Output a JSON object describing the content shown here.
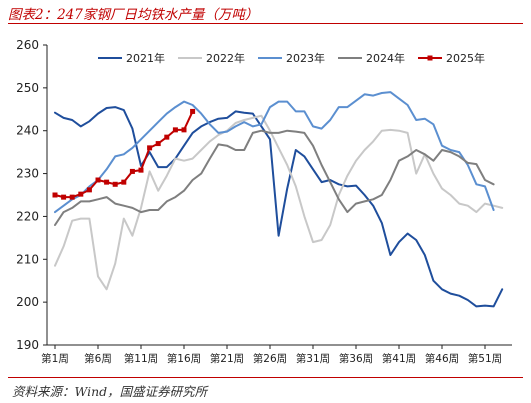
{
  "title": "图表2：247家钢厂日均铁水产量（万吨）",
  "source": "资料来源：Wind，国盛证券研究所",
  "chart_data": {
    "type": "line",
    "title": "图表2：247家钢厂日均铁水产量（万吨）",
    "ylim": [
      190,
      260
    ],
    "yticks": [
      190,
      200,
      210,
      220,
      230,
      240,
      250,
      260
    ],
    "xlim": [
      1,
      52
    ],
    "xticks": [
      {
        "x": 1,
        "label": "第1周"
      },
      {
        "x": 6,
        "label": "第6周"
      },
      {
        "x": 11,
        "label": "第11周"
      },
      {
        "x": 16,
        "label": "第16周"
      },
      {
        "x": 21,
        "label": "第21周"
      },
      {
        "x": 26,
        "label": "第26周"
      },
      {
        "x": 31,
        "label": "第31周"
      },
      {
        "x": 36,
        "label": "第36周"
      },
      {
        "x": 41,
        "label": "第41周"
      },
      {
        "x": 46,
        "label": "第46周"
      },
      {
        "x": 51,
        "label": "第51周"
      }
    ],
    "grid": false,
    "legend": "top",
    "series": [
      {
        "name": "2021年",
        "color": "#1f4e9c",
        "marker": "none",
        "points": [
          [
            1,
            244.2
          ],
          [
            2,
            243
          ],
          [
            3,
            242.5
          ],
          [
            4,
            241
          ],
          [
            5,
            242.2
          ],
          [
            6,
            244
          ],
          [
            7,
            245.3
          ],
          [
            8,
            245.5
          ],
          [
            9,
            244.8
          ],
          [
            10,
            240.5
          ],
          [
            11,
            231.8
          ],
          [
            12,
            235
          ],
          [
            13,
            231.5
          ],
          [
            14,
            231.5
          ],
          [
            15,
            233.5
          ],
          [
            16,
            236.5
          ],
          [
            17,
            239.5
          ],
          [
            18,
            241
          ],
          [
            19,
            242
          ],
          [
            20,
            242.8
          ],
          [
            21,
            243
          ],
          [
            22,
            244.5
          ],
          [
            23,
            244.2
          ],
          [
            24,
            244
          ],
          [
            25,
            241
          ],
          [
            26,
            238
          ],
          [
            27,
            215.5
          ],
          [
            28,
            226.5
          ],
          [
            29,
            235.5
          ],
          [
            30,
            234
          ],
          [
            31,
            231
          ],
          [
            32,
            228
          ],
          [
            33,
            228.5
          ],
          [
            34,
            227.5
          ],
          [
            35,
            227
          ],
          [
            36,
            227.2
          ],
          [
            37,
            225
          ],
          [
            38,
            222.5
          ],
          [
            39,
            218.5
          ],
          [
            40,
            211
          ],
          [
            41,
            214
          ],
          [
            42,
            216
          ],
          [
            43,
            214.5
          ],
          [
            44,
            211
          ],
          [
            45,
            205
          ],
          [
            46,
            203
          ],
          [
            47,
            202
          ],
          [
            48,
            201.5
          ],
          [
            49,
            200.5
          ],
          [
            50,
            199
          ],
          [
            51,
            199.2
          ],
          [
            52,
            199
          ],
          [
            53,
            203
          ]
        ]
      },
      {
        "name": "2022年",
        "color": "#c8c8c8",
        "marker": "none",
        "points": [
          [
            1,
            208.5
          ],
          [
            2,
            213
          ],
          [
            3,
            219
          ],
          [
            4,
            219.5
          ],
          [
            5,
            219.5
          ],
          [
            6,
            206
          ],
          [
            7,
            203
          ],
          [
            8,
            209
          ],
          [
            9,
            219.5
          ],
          [
            10,
            215.5
          ],
          [
            11,
            222
          ],
          [
            12,
            230.5
          ],
          [
            13,
            226
          ],
          [
            14,
            229.5
          ],
          [
            15,
            233.5
          ],
          [
            16,
            233
          ],
          [
            17,
            233.5
          ],
          [
            18,
            235.5
          ],
          [
            19,
            237.5
          ],
          [
            20,
            239
          ],
          [
            21,
            240
          ],
          [
            22,
            241.8
          ],
          [
            23,
            242.5
          ],
          [
            24,
            243
          ],
          [
            25,
            243.5
          ],
          [
            26,
            240
          ],
          [
            27,
            236
          ],
          [
            28,
            232
          ],
          [
            29,
            227
          ],
          [
            30,
            220
          ],
          [
            31,
            214
          ],
          [
            32,
            214.5
          ],
          [
            33,
            218
          ],
          [
            34,
            225
          ],
          [
            35,
            229.5
          ],
          [
            36,
            233
          ],
          [
            37,
            235.5
          ],
          [
            38,
            237.5
          ],
          [
            39,
            240
          ],
          [
            40,
            240.2
          ],
          [
            41,
            240
          ],
          [
            42,
            239.5
          ],
          [
            43,
            230
          ],
          [
            44,
            234.5
          ],
          [
            45,
            230
          ],
          [
            46,
            226.5
          ],
          [
            47,
            225
          ],
          [
            48,
            223
          ],
          [
            49,
            222.5
          ],
          [
            50,
            221
          ],
          [
            51,
            223
          ],
          [
            52,
            222.5
          ],
          [
            53,
            222
          ]
        ]
      },
      {
        "name": "2023年",
        "color": "#5b8fd0",
        "marker": "none",
        "points": [
          [
            1,
            221
          ],
          [
            2,
            222.5
          ],
          [
            3,
            224
          ],
          [
            4,
            225
          ],
          [
            5,
            227
          ],
          [
            6,
            228.5
          ],
          [
            7,
            231
          ],
          [
            8,
            234
          ],
          [
            9,
            234.5
          ],
          [
            10,
            236
          ],
          [
            11,
            238
          ],
          [
            12,
            240
          ],
          [
            13,
            242
          ],
          [
            14,
            244
          ],
          [
            15,
            245.5
          ],
          [
            16,
            246.8
          ],
          [
            17,
            246
          ],
          [
            18,
            244
          ],
          [
            19,
            241.5
          ],
          [
            20,
            239.5
          ],
          [
            21,
            239.8
          ],
          [
            22,
            241
          ],
          [
            23,
            242
          ],
          [
            24,
            241
          ],
          [
            25,
            241.5
          ],
          [
            26,
            245.5
          ],
          [
            27,
            246.8
          ],
          [
            28,
            246.8
          ],
          [
            29,
            244.5
          ],
          [
            30,
            244.5
          ],
          [
            31,
            241
          ],
          [
            32,
            240.5
          ],
          [
            33,
            242.5
          ],
          [
            34,
            245.5
          ],
          [
            35,
            245.5
          ],
          [
            36,
            247
          ],
          [
            37,
            248.5
          ],
          [
            38,
            248.2
          ],
          [
            39,
            248.8
          ],
          [
            40,
            249
          ],
          [
            41,
            247.5
          ],
          [
            42,
            246
          ],
          [
            43,
            242.5
          ],
          [
            44,
            242.8
          ],
          [
            45,
            241.5
          ],
          [
            46,
            236.5
          ],
          [
            47,
            235.5
          ],
          [
            48,
            235
          ],
          [
            49,
            232
          ],
          [
            50,
            227.5
          ],
          [
            51,
            227
          ],
          [
            52,
            221.5
          ]
        ]
      },
      {
        "name": "2024年",
        "color": "#7f7f7f",
        "marker": "none",
        "points": [
          [
            1,
            218
          ],
          [
            2,
            221
          ],
          [
            3,
            222
          ],
          [
            4,
            223.5
          ],
          [
            5,
            223.5
          ],
          [
            6,
            224
          ],
          [
            7,
            224.5
          ],
          [
            8,
            223
          ],
          [
            9,
            222.5
          ],
          [
            10,
            222
          ],
          [
            11,
            221
          ],
          [
            12,
            221.5
          ],
          [
            13,
            221.5
          ],
          [
            14,
            223.5
          ],
          [
            15,
            224.5
          ],
          [
            16,
            226
          ],
          [
            17,
            228.5
          ],
          [
            18,
            230
          ],
          [
            19,
            233.5
          ],
          [
            20,
            236.8
          ],
          [
            21,
            236.5
          ],
          [
            22,
            235.5
          ],
          [
            23,
            235.5
          ],
          [
            24,
            239.5
          ],
          [
            25,
            240
          ],
          [
            26,
            239.5
          ],
          [
            27,
            239.5
          ],
          [
            28,
            240
          ],
          [
            29,
            239.8
          ],
          [
            30,
            239.5
          ],
          [
            31,
            236.5
          ],
          [
            32,
            232
          ],
          [
            33,
            228
          ],
          [
            34,
            224
          ],
          [
            35,
            221
          ],
          [
            36,
            223
          ],
          [
            37,
            223.5
          ],
          [
            38,
            224
          ],
          [
            39,
            225
          ],
          [
            40,
            228.5
          ],
          [
            41,
            233
          ],
          [
            42,
            234
          ],
          [
            43,
            235.5
          ],
          [
            44,
            234.5
          ],
          [
            45,
            233
          ],
          [
            46,
            235.5
          ],
          [
            47,
            235
          ],
          [
            48,
            234
          ],
          [
            49,
            232.5
          ],
          [
            50,
            232.2
          ],
          [
            51,
            228.5
          ],
          [
            52,
            227.5
          ]
        ]
      },
      {
        "name": "2025年",
        "color": "#c00000",
        "marker": "square",
        "points": [
          [
            1,
            225
          ],
          [
            2,
            224.5
          ],
          [
            3,
            224.5
          ],
          [
            4,
            225.2
          ],
          [
            5,
            226.2
          ],
          [
            6,
            228.5
          ],
          [
            7,
            228
          ],
          [
            8,
            227.5
          ],
          [
            9,
            228
          ],
          [
            10,
            230.5
          ],
          [
            11,
            230.8
          ],
          [
            12,
            236
          ],
          [
            13,
            237
          ],
          [
            14,
            238.5
          ],
          [
            15,
            240.2
          ],
          [
            16,
            240.2
          ],
          [
            17,
            244.5
          ]
        ]
      }
    ]
  }
}
